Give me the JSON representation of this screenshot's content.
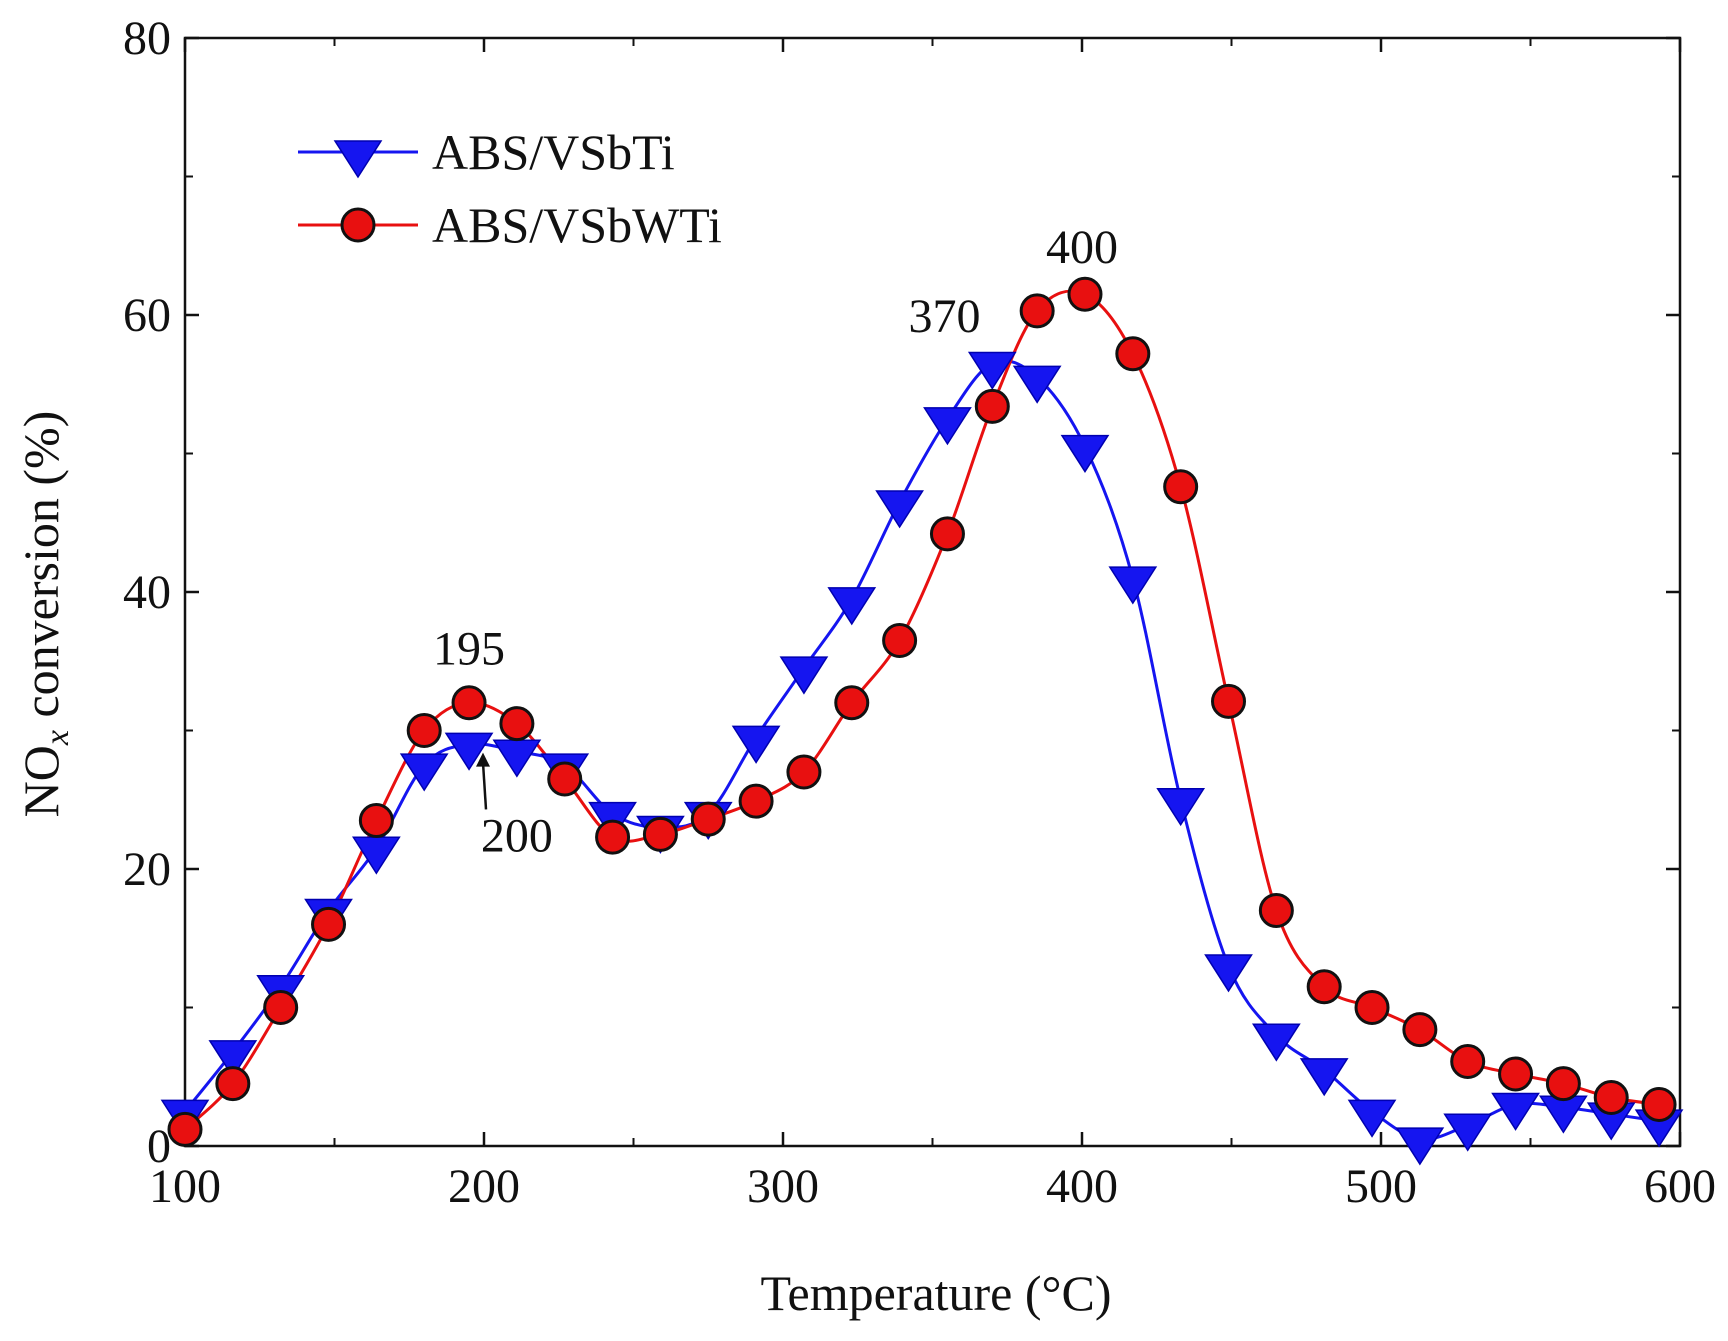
{
  "chart_data": {
    "type": "line",
    "title": "",
    "xlabel": "Temperature (°C)",
    "ylabel_prefix": "NO",
    "ylabel_subscript": "x",
    "ylabel_suffix": " conversion (%)",
    "xlim": [
      100,
      600
    ],
    "ylim": [
      0,
      80
    ],
    "xticks": [
      "100",
      "200",
      "300",
      "400",
      "500",
      "600"
    ],
    "yticks": [
      "0",
      "20",
      "40",
      "60",
      "80"
    ],
    "legend_position": "top-left",
    "series": [
      {
        "name": "ABS/VSbTi",
        "color": "#1515f0",
        "marker": "triangle-down",
        "x": [
          100,
          116,
          132,
          148,
          164,
          180,
          195,
          211,
          227,
          243,
          259,
          275,
          291,
          307,
          323,
          339,
          355,
          370,
          385,
          401,
          417,
          433,
          449,
          465,
          481,
          497,
          513,
          529,
          545,
          561,
          577,
          593
        ],
        "y": [
          2.5,
          6.8,
          11.5,
          17,
          21.5,
          27.5,
          29,
          28.5,
          27.5,
          24,
          23,
          24,
          29.5,
          34.5,
          39.5,
          46.5,
          52.5,
          56.5,
          55.5,
          50.5,
          41,
          25,
          13,
          8,
          5.5,
          2.5,
          0.5,
          1.5,
          3,
          2.8,
          2.3,
          1.8
        ]
      },
      {
        "name": "ABS/VSbWTi",
        "color": "#e81010",
        "marker": "circle",
        "x": [
          100,
          116,
          132,
          148,
          164,
          180,
          195,
          211,
          227,
          243,
          259,
          275,
          291,
          307,
          323,
          339,
          355,
          370,
          385,
          401,
          417,
          433,
          449,
          465,
          481,
          497,
          513,
          529,
          545,
          561,
          577,
          593
        ],
        "y": [
          1.2,
          4.5,
          10,
          16,
          23.5,
          30,
          32,
          30.5,
          26.5,
          22.3,
          22.5,
          23.6,
          24.9,
          27,
          32,
          36.5,
          44.2,
          53.4,
          60.3,
          61.5,
          57.2,
          47.6,
          32.1,
          17,
          11.5,
          10,
          8.4,
          6.1,
          5.2,
          4.5,
          3.5,
          3
        ]
      }
    ],
    "annotations": [
      {
        "text": "195",
        "x": 195,
        "y": 36
      },
      {
        "text": "200",
        "x": 211,
        "y": 22.5
      },
      {
        "text": "370",
        "x": 354,
        "y": 60
      },
      {
        "text": "400",
        "x": 400,
        "y": 65
      }
    ]
  }
}
